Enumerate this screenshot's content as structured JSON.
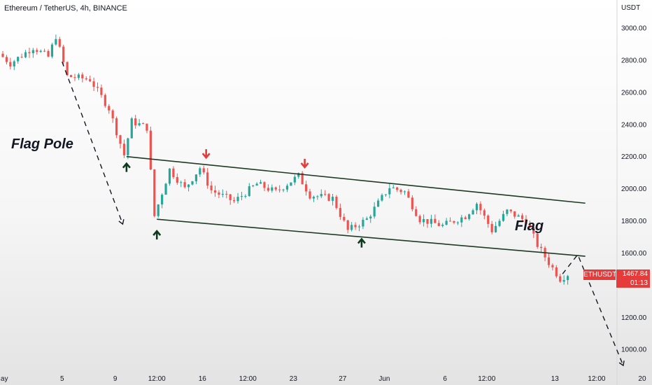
{
  "header": {
    "title": "Ethereum / TetherUS, 4h, BINANCE",
    "unit": "USDT"
  },
  "annotations": {
    "pole_label": "Flag Pole",
    "flag_label": "Flag"
  },
  "price_tag": {
    "symbol": "ETHUSDT",
    "price": "1467.84",
    "countdown": "01:13",
    "color": "#e53b3b"
  },
  "colors": {
    "up": "#26a69a",
    "down": "#ef5350",
    "line": "#1e3a24",
    "arrow_up": "#0d3b1e",
    "arrow_down": "#e53b3b"
  },
  "chart_data": {
    "type": "candlestick",
    "title": "Ethereum / TetherUS, 4h, BINANCE",
    "y_unit": "USDT",
    "ylim": [
      900,
      3100
    ],
    "y_ticks": [
      1000,
      1200,
      1400,
      1600,
      1800,
      2000,
      2200,
      2400,
      2600,
      2800,
      3000
    ],
    "y_tick_labels": [
      "1000.00",
      "1200.00",
      "",
      "1600.00",
      "1800.00",
      "2000.00",
      "2200.00",
      "2400.00",
      "2600.00",
      "2800.00",
      "3000.00"
    ],
    "x_tick_labels": [
      "May",
      "5",
      "9",
      "12:00",
      "16",
      "12:00",
      "23",
      "27",
      "Jun",
      "6",
      "12:00",
      "13",
      "12:00",
      "20"
    ],
    "x_tick_bars": [
      0,
      16,
      30,
      41,
      53,
      65,
      77,
      90,
      101,
      117,
      128,
      146,
      157,
      169
    ],
    "bar_count": 150,
    "key_points": [
      {
        "bar": 0,
        "price": 2840
      },
      {
        "bar": 3,
        "price": 2780
      },
      {
        "bar": 9,
        "price": 2880
      },
      {
        "bar": 13,
        "price": 2820
      },
      {
        "bar": 15,
        "price": 2950
      },
      {
        "bar": 18,
        "price": 2700
      },
      {
        "bar": 24,
        "price": 2680
      },
      {
        "bar": 29,
        "price": 2500
      },
      {
        "bar": 33,
        "price": 2210
      },
      {
        "bar": 35,
        "price": 2420
      },
      {
        "bar": 39,
        "price": 2380
      },
      {
        "bar": 41,
        "price": 1830
      },
      {
        "bar": 45,
        "price": 2120
      },
      {
        "bar": 49,
        "price": 2000
      },
      {
        "bar": 53,
        "price": 2130
      },
      {
        "bar": 56,
        "price": 1990
      },
      {
        "bar": 62,
        "price": 1920
      },
      {
        "bar": 68,
        "price": 2030
      },
      {
        "bar": 73,
        "price": 1980
      },
      {
        "bar": 79,
        "price": 2080
      },
      {
        "bar": 82,
        "price": 1960
      },
      {
        "bar": 88,
        "price": 1940
      },
      {
        "bar": 92,
        "price": 1740
      },
      {
        "bar": 97,
        "price": 1810
      },
      {
        "bar": 103,
        "price": 2010
      },
      {
        "bar": 107,
        "price": 1980
      },
      {
        "bar": 111,
        "price": 1810
      },
      {
        "bar": 117,
        "price": 1770
      },
      {
        "bar": 123,
        "price": 1830
      },
      {
        "bar": 126,
        "price": 1910
      },
      {
        "bar": 130,
        "price": 1740
      },
      {
        "bar": 134,
        "price": 1860
      },
      {
        "bar": 139,
        "price": 1800
      },
      {
        "bar": 142,
        "price": 1650
      },
      {
        "bar": 145,
        "price": 1540
      },
      {
        "bar": 148,
        "price": 1440
      },
      {
        "bar": 150,
        "price": 1468
      }
    ],
    "trend_lines": [
      {
        "name": "upper",
        "from": {
          "bar": 33,
          "price": 2200
        },
        "to": {
          "bar": 154,
          "price": 1910
        }
      },
      {
        "name": "lower",
        "from": {
          "bar": 41,
          "price": 1810
        },
        "to": {
          "bar": 154,
          "price": 1580
        }
      }
    ],
    "projection_lines": [
      {
        "name": "pole",
        "from": {
          "bar": 16,
          "price": 2790
        },
        "to": {
          "bar": 32,
          "price": 1780
        }
      },
      {
        "name": "target",
        "from": {
          "bar": 148,
          "price": 1470
        },
        "via": {
          "bar": 152,
          "price": 1590
        },
        "to": {
          "bar": 164,
          "price": 900
        }
      }
    ],
    "markers": [
      {
        "type": "up",
        "bar": 33,
        "price": 2200
      },
      {
        "type": "up",
        "bar": 41,
        "price": 1780
      },
      {
        "type": "down",
        "bar": 54,
        "price": 2150
      },
      {
        "type": "down",
        "bar": 80,
        "price": 2090
      },
      {
        "type": "up",
        "bar": 95,
        "price": 1730
      }
    ]
  }
}
